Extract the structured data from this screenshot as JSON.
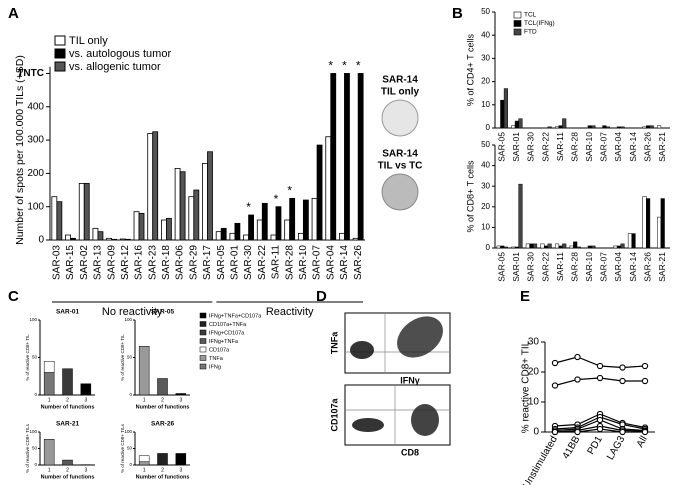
{
  "chart_data": [
    {
      "type": "bar",
      "panel": "A",
      "y_label": "Number of spots per 100.000 TILs (+SD)",
      "categories": [
        "SAR-03",
        "SAR-15",
        "SAR-02",
        "SAR-13",
        "SAR-09",
        "SAR-12",
        "SAR-16",
        "SAR-23",
        "SAR-18",
        "SAR-06",
        "SAR-29",
        "SAR-17",
        "SAR-05",
        "SAR-01",
        "SAR-30",
        "SAR-22",
        "SAR-11",
        "SAR-28",
        "SAR-10",
        "SAR-07",
        "SAR-04",
        "SAR-14",
        "SAR-26"
      ],
      "series": [
        {
          "name": "TIL only",
          "color": "#ffffff",
          "values": [
            130,
            15,
            170,
            35,
            5,
            3,
            85,
            320,
            60,
            215,
            130,
            230,
            25,
            20,
            15,
            60,
            15,
            60,
            20,
            125,
            310,
            20,
            5
          ]
        },
        {
          "name": "vs. autologous tumor",
          "color": "#000000",
          "values": [
            null,
            5,
            null,
            null,
            2,
            2,
            null,
            null,
            null,
            null,
            null,
            null,
            35,
            50,
            75,
            110,
            100,
            125,
            120,
            285,
            500,
            500,
            500
          ]
        },
        {
          "name": "vs. allogenic tumor",
          "color": "#555555",
          "values": [
            115,
            null,
            170,
            25,
            null,
            null,
            80,
            325,
            65,
            205,
            150,
            265,
            null,
            null,
            null,
            null,
            null,
            null,
            null,
            null,
            null,
            null,
            null
          ]
        }
      ],
      "ylim": [
        0,
        520
      ],
      "yticks": [
        0,
        100,
        200,
        300,
        400,
        {
          "value": 500,
          "label": "TNTC"
        }
      ],
      "groups": [
        {
          "label": "No reactivity",
          "start": "SAR-03",
          "end": "SAR-17"
        },
        {
          "label": "Reactivity",
          "start": "SAR-05",
          "end": "SAR-26"
        }
      ],
      "annotations": [
        {
          "text": "*",
          "x": "SAR-30"
        },
        {
          "text": "*",
          "x": "SAR-11"
        },
        {
          "text": "*",
          "x": "SAR-28"
        },
        {
          "text": "*",
          "x": "SAR-04"
        },
        {
          "text": "*",
          "x": "SAR-14"
        },
        {
          "text": "*",
          "x": "SAR-26"
        }
      ],
      "images": [
        {
          "lines": [
            "SAR-14",
            "TIL only"
          ]
        },
        {
          "lines": [
            "SAR-14",
            "TIL vs TC"
          ]
        }
      ]
    },
    {
      "type": "bar-pair",
      "panel": "B",
      "legend": [
        {
          "name": "TCL",
          "color": "#ffffff"
        },
        {
          "name": "TCL(IFNg)",
          "color": "#000000"
        },
        {
          "name": "FTD",
          "color": "#444444"
        }
      ],
      "categories": [
        "SAR-05",
        "SAR-01",
        "SAR-30",
        "SAR-22",
        "SAR-11",
        "SAR-28",
        "SAR-10",
        "SAR-07",
        "SAR-04",
        "SAR-14",
        "SAR-26",
        "SAR-21"
      ],
      "charts": [
        {
          "y_label": "% of CD4+ T cells",
          "ylim": [
            0,
            50
          ],
          "yticks": [
            0,
            10,
            20,
            30,
            40,
            50
          ],
          "series": [
            [
              0,
              1,
              0,
              0,
              0.5,
              0,
              0,
              0,
              0,
              0,
              0.5,
              1
            ],
            [
              12,
              3,
              0,
              0,
              1,
              0,
              1,
              1,
              0.5,
              0,
              1,
              0
            ],
            [
              17,
              4,
              0,
              0.5,
              4,
              0,
              1,
              0.5,
              0.5,
              0,
              1,
              0
            ]
          ]
        },
        {
          "y_label": "% of CD8+ T cells",
          "ylim": [
            0,
            50
          ],
          "yticks": [
            0,
            10,
            20,
            30,
            40,
            50
          ],
          "series": [
            [
              1,
              0.5,
              2,
              2,
              2,
              1,
              0,
              0,
              1,
              7,
              25,
              15
            ],
            [
              1,
              0.5,
              2,
              1,
              1,
              3,
              1,
              0,
              1,
              7,
              24,
              24
            ],
            [
              0.5,
              31,
              2,
              2,
              2,
              0.5,
              1,
              0,
              2,
              0,
              0,
              0
            ]
          ]
        }
      ]
    },
    {
      "type": "stacked",
      "panel": "C",
      "x_label": "Number of functions",
      "categories": [
        "1",
        "2",
        "3"
      ],
      "legend": [
        {
          "name": "IFNg+TNFa+CD107a",
          "color": "#000000"
        },
        {
          "name": "CD107a+TNFa",
          "color": "#222222"
        },
        {
          "name": "IFNg+CD107a",
          "color": "#3a3a3a"
        },
        {
          "name": "IFNg+TNFa",
          "color": "#5a5a5a"
        },
        {
          "name": "CD107a",
          "color": "#ffffff"
        },
        {
          "name": "TNFa",
          "color": "#999999"
        },
        {
          "name": "IFNg",
          "color": "#777777"
        }
      ],
      "ylim": [
        0,
        100
      ],
      "yticks": [
        0,
        50,
        100
      ],
      "charts": [
        {
          "title": "SAR-01",
          "y_label": "% of reactive CD8+ TIL",
          "values": [
            [
              0,
              0,
              0,
              0,
              15,
              0,
              30
            ],
            [
              0,
              0,
              35,
              0,
              0,
              0,
              0
            ],
            [
              15,
              0,
              0,
              0,
              0,
              0,
              0
            ]
          ]
        },
        {
          "title": "SAR-05",
          "y_label": "% of reactive CD8+ TIL",
          "values": [
            [
              0,
              0,
              0,
              0,
              0,
              65,
              0
            ],
            [
              0,
              0,
              0,
              22,
              0,
              0,
              0
            ],
            [
              2,
              0,
              0,
              0,
              0,
              0,
              0
            ]
          ]
        },
        {
          "title": "SAR-21",
          "y_label": "% of reactive CD8+ TILs",
          "values": [
            [
              0,
              0,
              0,
              0,
              0,
              78,
              0
            ],
            [
              0,
              0,
              0,
              15,
              0,
              0,
              0
            ],
            [
              1,
              0,
              0,
              0,
              0,
              0,
              0
            ]
          ]
        },
        {
          "title": "SAR-26",
          "y_label": "% of reactive CD8+ TILs",
          "values": [
            [
              0,
              0,
              0,
              0,
              18,
              10,
              0
            ],
            [
              0,
              35,
              0,
              0,
              0,
              0,
              0
            ],
            [
              35,
              0,
              0,
              0,
              0,
              0,
              0
            ]
          ]
        }
      ]
    },
    {
      "type": "flow",
      "panel": "D",
      "plots": [
        {
          "y_label": "TNFa",
          "x_label": "IFNγ"
        },
        {
          "y_label": "CD107a",
          "x_label": "CD8"
        }
      ]
    },
    {
      "type": "line",
      "panel": "E",
      "y_label": "% reactive CD8+ TIL",
      "categories": [
        "Unstimulated",
        "41BB",
        "PD1",
        "LAG3",
        "All"
      ],
      "ylim": [
        0,
        30
      ],
      "yticks": [
        0,
        10,
        20,
        30
      ],
      "color": "#000000",
      "series": [
        {
          "values": [
            23,
            25,
            22,
            21.5,
            22
          ]
        },
        {
          "values": [
            15.5,
            17.5,
            18,
            17,
            17
          ]
        },
        {
          "values": [
            2,
            2.5,
            6,
            3,
            1.5
          ]
        },
        {
          "values": [
            1,
            1.5,
            5,
            2.5,
            1
          ]
        },
        {
          "values": [
            0.5,
            1,
            4,
            1,
            0.5
          ]
        },
        {
          "values": [
            0,
            0.5,
            2,
            0.5,
            0.3
          ]
        },
        {
          "values": [
            0,
            0,
            1,
            0,
            0
          ]
        }
      ]
    }
  ]
}
